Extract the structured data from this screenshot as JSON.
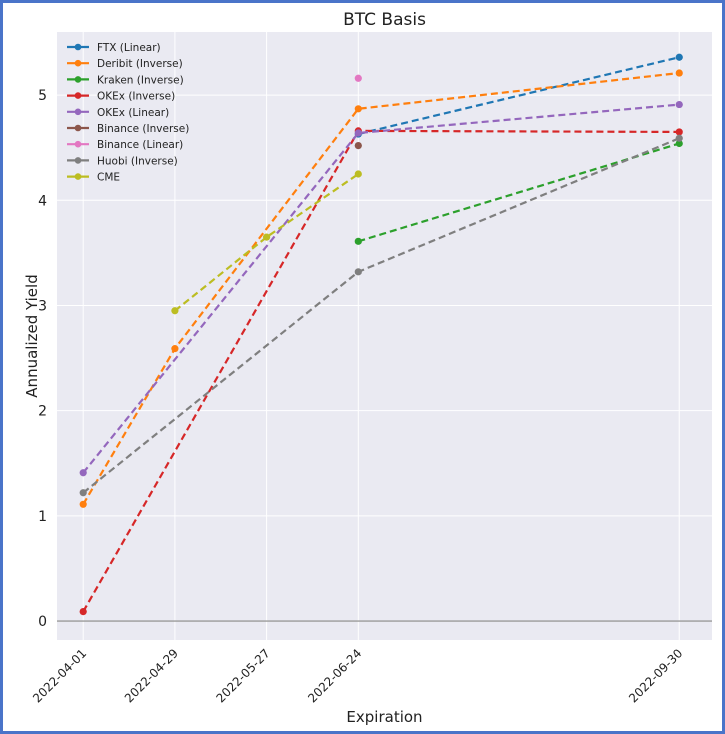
{
  "chart_data": {
    "type": "line",
    "title": "BTC Basis",
    "xlabel": "Expiration",
    "ylabel": "Annualized Yield",
    "x": [
      "2022-04-01",
      "2022-04-29",
      "2022-05-27",
      "2022-06-24",
      "2022-09-30"
    ],
    "x_days": [
      0,
      28,
      56,
      84,
      182
    ],
    "ylim": [
      -0.18,
      5.6
    ],
    "yticks": [
      0,
      1,
      2,
      3,
      4,
      5
    ],
    "grid": true,
    "legend_position": "top-left",
    "series": [
      {
        "name": "FTX (Linear)",
        "color": "#1f77b4",
        "points": [
          [
            "2022-06-24",
            4.63
          ],
          [
            "2022-09-30",
            5.36
          ]
        ]
      },
      {
        "name": "Deribit (Inverse)",
        "color": "#ff7f0e",
        "points": [
          [
            "2022-04-01",
            1.11
          ],
          [
            "2022-04-29",
            2.59
          ],
          [
            "2022-06-24",
            4.87
          ],
          [
            "2022-09-30",
            5.21
          ]
        ]
      },
      {
        "name": "Kraken (Inverse)",
        "color": "#2ca02c",
        "points": [
          [
            "2022-06-24",
            3.61
          ],
          [
            "2022-09-30",
            4.54
          ]
        ]
      },
      {
        "name": "OKEx (Inverse)",
        "color": "#d62728",
        "points": [
          [
            "2022-04-01",
            0.09
          ],
          [
            "2022-06-24",
            4.66
          ],
          [
            "2022-09-30",
            4.65
          ]
        ]
      },
      {
        "name": "OKEx (Linear)",
        "color": "#9467bd",
        "points": [
          [
            "2022-04-01",
            1.41
          ],
          [
            "2022-06-24",
            4.64
          ],
          [
            "2022-09-30",
            4.91
          ]
        ]
      },
      {
        "name": "Binance (Inverse)",
        "color": "#8c564b",
        "points": [
          [
            "2022-06-24",
            4.52
          ]
        ]
      },
      {
        "name": "Binance (Linear)",
        "color": "#e377c2",
        "points": [
          [
            "2022-06-24",
            5.16
          ]
        ]
      },
      {
        "name": "Huobi (Inverse)",
        "color": "#7f7f7f",
        "points": [
          [
            "2022-04-01",
            1.22
          ],
          [
            "2022-06-24",
            3.32
          ],
          [
            "2022-09-30",
            4.59
          ]
        ]
      },
      {
        "name": "CME",
        "color": "#bcbd22",
        "points": [
          [
            "2022-04-29",
            2.95
          ],
          [
            "2022-05-27",
            3.65
          ],
          [
            "2022-06-24",
            4.25
          ]
        ]
      }
    ]
  }
}
